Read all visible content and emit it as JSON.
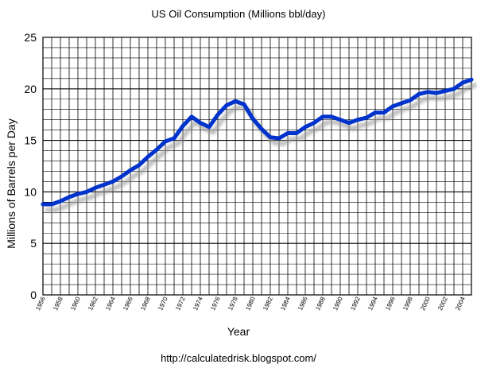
{
  "chart_data": {
    "type": "line",
    "title": "US Oil Consumption (Millions bbl/day)",
    "xlabel": "Year",
    "ylabel": "Millions of Barrels per Day",
    "source": "http://calculatedrisk.blogspot.com/",
    "xlim": [
      1956,
      2005
    ],
    "ylim": [
      0,
      25
    ],
    "y_ticks": [
      0,
      5,
      10,
      15,
      20,
      25
    ],
    "x_tick_labels": [
      "1956",
      "1958",
      "1960",
      "1962",
      "1964",
      "1966",
      "1968",
      "1970",
      "1972",
      "1974",
      "1976",
      "1978",
      "1980",
      "1982",
      "1984",
      "1986",
      "1988",
      "1990",
      "1992",
      "1994",
      "1996",
      "1998",
      "2000",
      "2002",
      "2004"
    ],
    "grid": true,
    "legend": "none",
    "line_color": "#0033cc",
    "series": [
      {
        "x": [
          1956,
          1957,
          1958,
          1959,
          1960,
          1961,
          1962,
          1963,
          1964,
          1965,
          1966,
          1967,
          1968,
          1969,
          1970,
          1971,
          1972,
          1973,
          1974,
          1975,
          1976,
          1977,
          1978,
          1979,
          1980,
          1981,
          1982,
          1983,
          1984,
          1985,
          1986,
          1987,
          1988,
          1989,
          1990,
          1991,
          1992,
          1993,
          1994,
          1995,
          1996,
          1997,
          1998,
          1999,
          2000,
          2001,
          2002,
          2003,
          2004,
          2005
        ],
        "y": [
          8.8,
          8.8,
          9.1,
          9.5,
          9.8,
          10.0,
          10.4,
          10.7,
          11.0,
          11.5,
          12.1,
          12.6,
          13.4,
          14.1,
          14.9,
          15.2,
          16.4,
          17.3,
          16.7,
          16.3,
          17.5,
          18.4,
          18.8,
          18.5,
          17.1,
          16.1,
          15.3,
          15.2,
          15.7,
          15.7,
          16.3,
          16.7,
          17.3,
          17.3,
          17.0,
          16.7,
          17.0,
          17.2,
          17.7,
          17.7,
          18.3,
          18.6,
          18.9,
          19.5,
          19.7,
          19.6,
          19.8,
          20.0,
          20.6,
          20.9
        ]
      }
    ]
  }
}
